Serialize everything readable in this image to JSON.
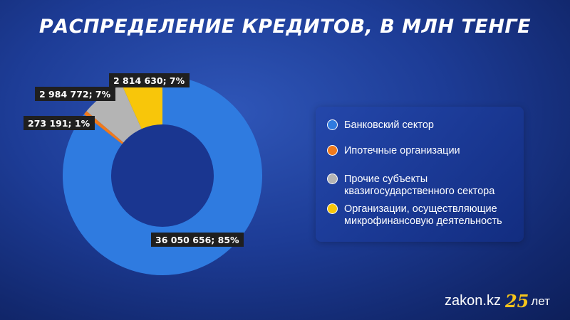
{
  "title": "РАСПРЕДЕЛЕНИЕ КРЕДИТОВ, В МЛН ТЕНГЕ",
  "chart_data": {
    "type": "pie",
    "variant": "donut",
    "title": "РАСПРЕДЕЛЕНИЕ КРЕДИТОВ, В МЛН ТЕНГЕ",
    "categories": [
      "Банковский сектор",
      "Ипотечные организации",
      "Прочие субъекты квазигосударственного сектора",
      "Организации, осуществляющие микрофинансовую деятельность"
    ],
    "values": [
      36050656,
      273191,
      2984772,
      2814630
    ],
    "data_labels": [
      "36 050 656; 85%",
      "273 191; 1%",
      "2 984 772; 7%",
      "2 814 630; 7%"
    ],
    "colors": [
      "#2f7be0",
      "#f07a1c",
      "#b4b4b4",
      "#f8c60a"
    ],
    "legend_position": "right"
  },
  "legend": {
    "items": [
      {
        "label": "Банковский сектор",
        "color": "#2f7be0"
      },
      {
        "label": "Ипотечные организации",
        "color": "#f07a1c"
      },
      {
        "label": "Прочие субъекты квазигосударственного сектора",
        "color": "#b4b4b4"
      },
      {
        "label": "Организации, осуществляющие микрофинансовую деятельность",
        "color": "#f8c60a"
      }
    ]
  },
  "brand": {
    "site": "zakon.kz",
    "anniversary_number": "25",
    "anniversary_word": "лет"
  }
}
